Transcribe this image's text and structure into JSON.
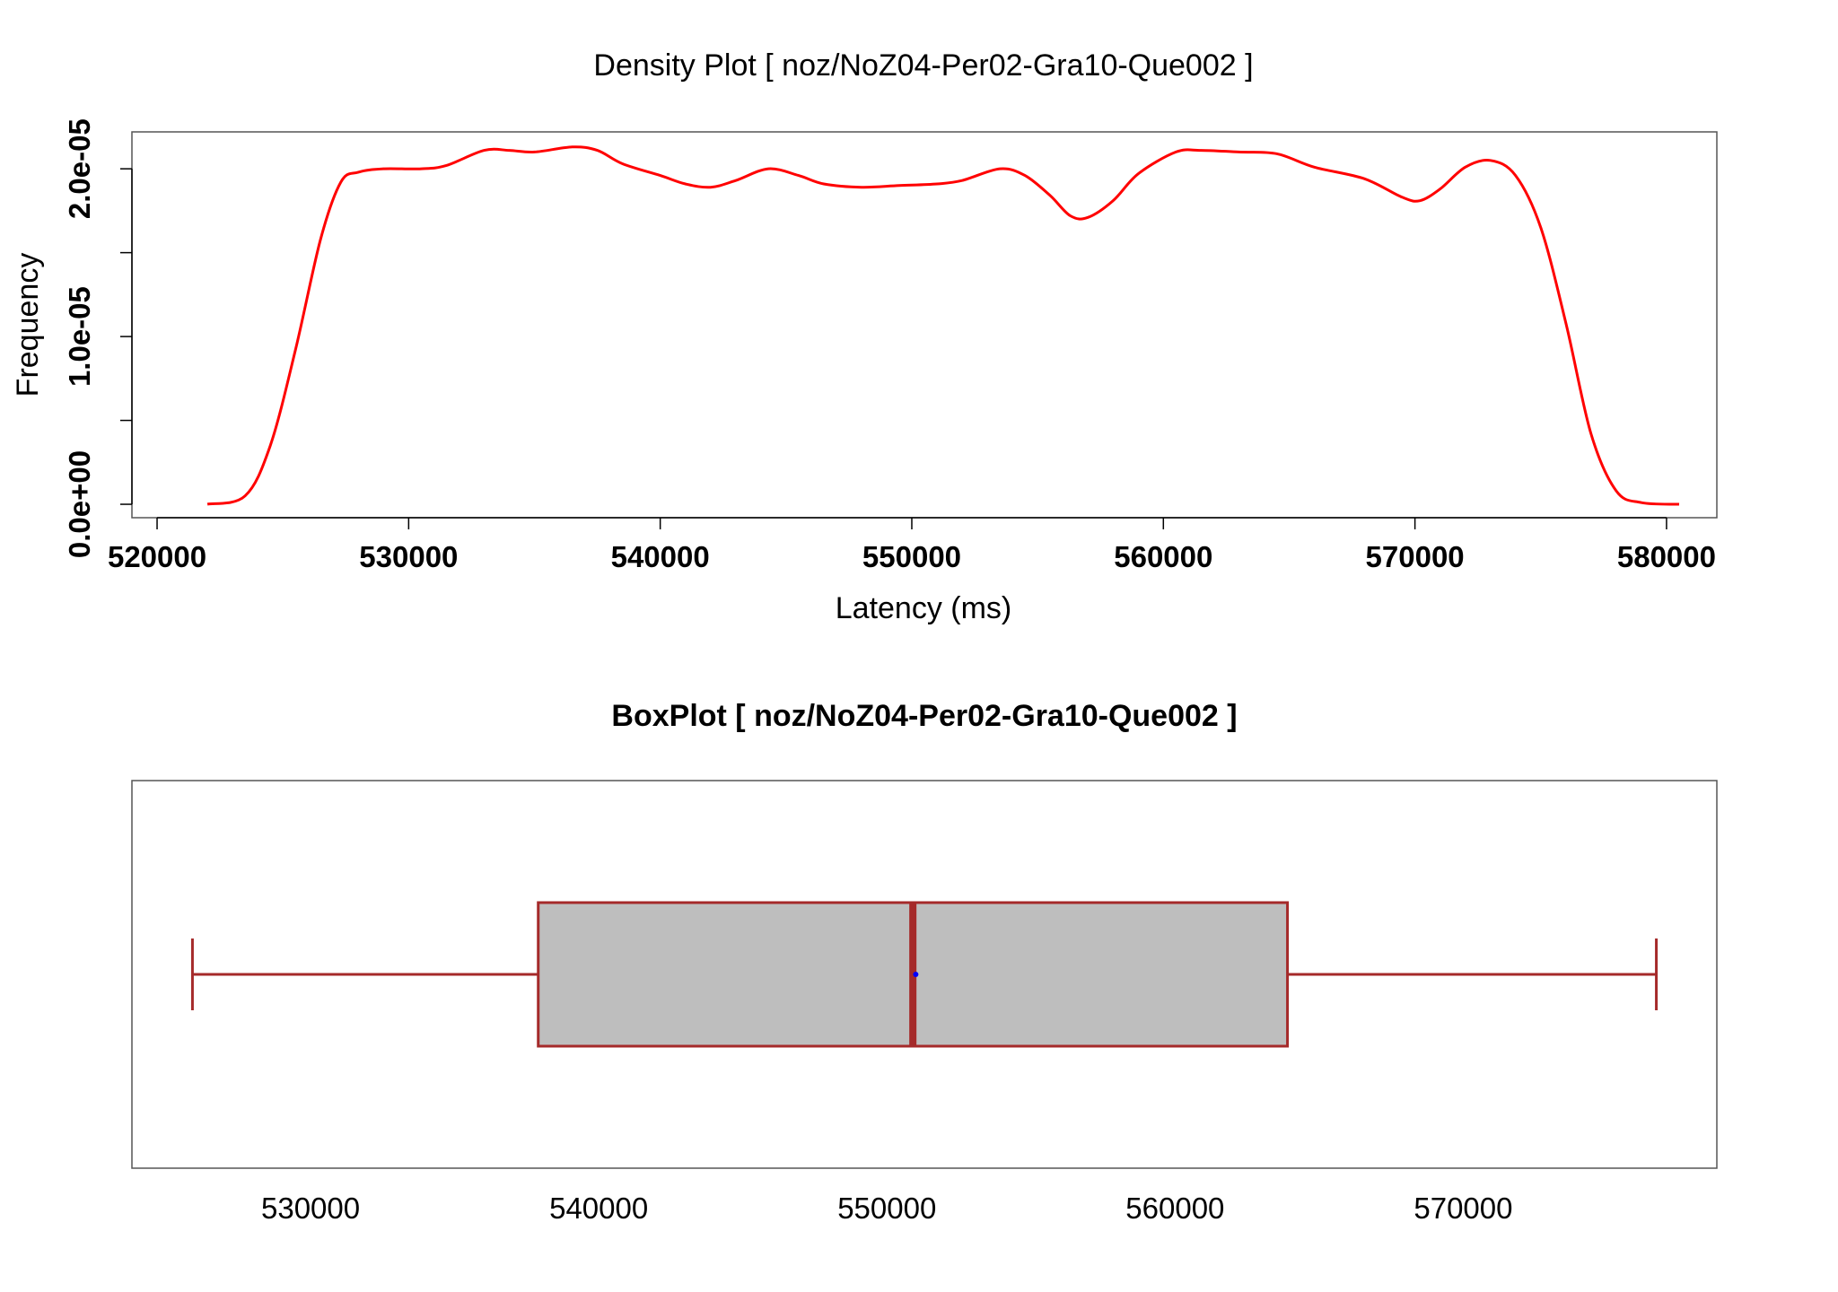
{
  "chart_data": [
    {
      "type": "line",
      "title": "Density Plot [ noz/NoZ04-Per02-Gra10-Que002 ]",
      "xlabel": "Latency (ms)",
      "ylabel": "Frequency",
      "xlim": [
        519000,
        582000
      ],
      "ylim": [
        -8e-07,
        2.22e-05
      ],
      "x_ticks": [
        520000,
        530000,
        540000,
        550000,
        560000,
        570000,
        580000
      ],
      "x_tick_labels": [
        "520000",
        "530000",
        "540000",
        "550000",
        "560000",
        "570000",
        "580000"
      ],
      "y_ticks": [
        0,
        5e-06,
        1e-05,
        1.5e-05,
        2e-05
      ],
      "y_tick_labels": [
        "0.0e+00",
        "",
        "1.0e-05",
        "",
        "2.0e-05"
      ],
      "line_color": "#ff0000",
      "series": [
        {
          "x": [
            522000,
            523500,
            524500,
            525500,
            526500,
            527300,
            528000,
            529000,
            530500,
            531500,
            533000,
            534000,
            535000,
            536500,
            537500,
            538500,
            540000,
            541000,
            542000,
            543000,
            544300,
            545500,
            546500,
            548000,
            549500,
            551000,
            552000,
            553500,
            554500,
            555500,
            556300,
            557000,
            558000,
            559000,
            560500,
            561500,
            563000,
            564500,
            566000,
            568000,
            569500,
            570200,
            571000,
            572000,
            573000,
            574000,
            575000,
            576000,
            577000,
            578000,
            579000,
            580500
          ],
          "y": [
            0,
            5e-07,
            3.5e-06,
            9.2e-06,
            1.58e-05,
            1.92e-05,
            1.98e-05,
            2e-05,
            2e-05,
            2.02e-05,
            2.11e-05,
            2.11e-05,
            2.1e-05,
            2.13e-05,
            2.11e-05,
            2.03e-05,
            1.96e-05,
            1.91e-05,
            1.89e-05,
            1.93e-05,
            2e-05,
            1.96e-05,
            1.91e-05,
            1.89e-05,
            1.9e-05,
            1.91e-05,
            1.93e-05,
            2e-05,
            1.96e-05,
            1.84e-05,
            1.72e-05,
            1.71e-05,
            1.81e-05,
            1.97e-05,
            2.1e-05,
            2.11e-05,
            2.1e-05,
            2.09e-05,
            2.01e-05,
            1.94e-05,
            1.83e-05,
            1.81e-05,
            1.88e-05,
            2.01e-05,
            2.05e-05,
            1.96e-05,
            1.65e-05,
            1.08e-05,
            4.2e-06,
            8e-07,
            1e-07,
            0
          ]
        }
      ]
    },
    {
      "type": "boxplot",
      "title": "BoxPlot [ noz/NoZ04-Per02-Gra10-Que002 ]",
      "xlim": [
        523800,
        578800
      ],
      "x_ticks": [
        530000,
        540000,
        550000,
        560000,
        570000
      ],
      "x_tick_labels": [
        "530000",
        "540000",
        "550000",
        "560000",
        "570000"
      ],
      "whisker_low": 525900,
      "q1": 537900,
      "median": 550900,
      "mean": 551000,
      "q3": 563900,
      "whisker_high": 576700,
      "box_color": "#bebebe",
      "border_color": "#a52a2a",
      "mean_color": "#0000ff"
    }
  ]
}
